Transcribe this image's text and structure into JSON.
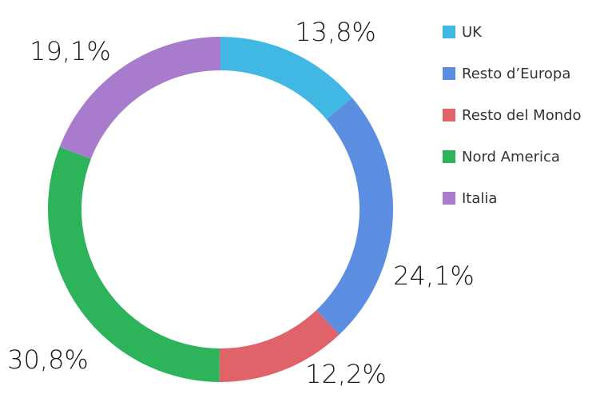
{
  "chart_data": {
    "type": "donut",
    "categories": [
      "UK",
      "Resto d’Europa",
      "Resto del Mondo",
      "Nord America",
      "Italia"
    ],
    "values": [
      13.8,
      24.1,
      12.2,
      30.8,
      19.1
    ],
    "value_labels": [
      "13,8%",
      "24,1%",
      "12,2%",
      "30,8%",
      "19,1%"
    ],
    "colors": [
      "#41b8e4",
      "#5b8de0",
      "#e0636a",
      "#2db35a",
      "#a87bcc"
    ],
    "legend": "right"
  }
}
